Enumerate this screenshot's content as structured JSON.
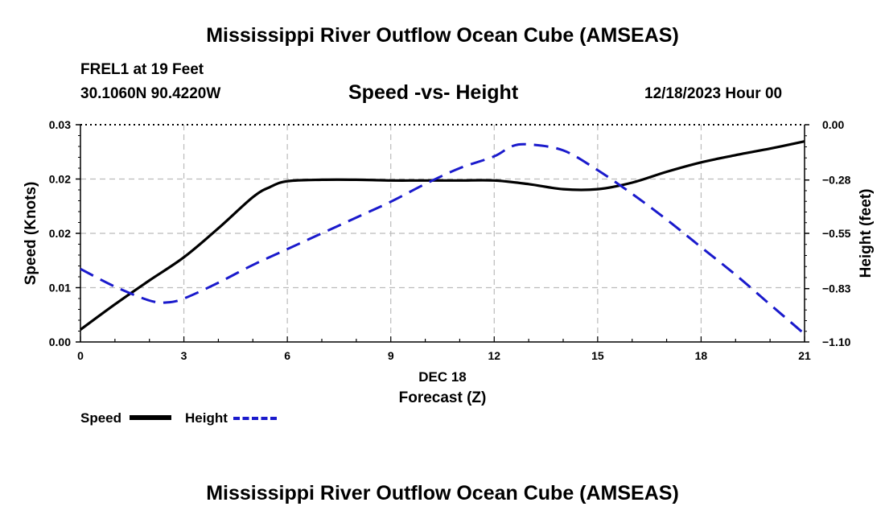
{
  "header": {
    "title": "Mississippi River Outflow Ocean Cube (AMSEAS)",
    "station": "FREL1 at 19 Feet",
    "coords": "30.1060N  90.4220W",
    "date": "12/18/2023 Hour 00"
  },
  "footer": {
    "title": "Mississippi River Outflow Ocean Cube (AMSEAS)"
  },
  "legend": {
    "speed_label": "Speed",
    "height_label": "Height"
  },
  "colors": {
    "speed": "#000000",
    "height": "#1a1acc",
    "grid": "#bbbbbb"
  },
  "chart_data": {
    "type": "line",
    "title": "Speed -vs- Height",
    "xlabel": "Forecast (Z)",
    "xdate_label": "DEC 18",
    "ylabel": "Speed (Knots)",
    "y2label": "Height (feet)",
    "xlim": [
      0,
      21
    ],
    "x_ticks": [
      0,
      3,
      6,
      9,
      12,
      15,
      18,
      21
    ],
    "x_tick_labels": [
      "0",
      "3",
      "6",
      "9",
      "12",
      "15",
      "18",
      "21"
    ],
    "ylim": [
      0,
      0.03
    ],
    "y_ticks": [
      0,
      0.0075,
      0.015,
      0.0225,
      0.03
    ],
    "y_tick_labels": [
      "0.00",
      "0.01",
      "0.02",
      "0.02",
      "0.03"
    ],
    "y2lim": [
      -1.1,
      0.0
    ],
    "y2_ticks": [
      -1.1,
      -0.83,
      -0.55,
      -0.28,
      0.0
    ],
    "y2_tick_labels": [
      "−1.10",
      "−0.83",
      "−0.55",
      "−0.28",
      "0.00"
    ],
    "grid": true,
    "series": [
      {
        "name": "Speed",
        "axis": "left",
        "style": "solid",
        "x": [
          0,
          1,
          2,
          3,
          4,
          5,
          5.5,
          6,
          7,
          8,
          9,
          10,
          11,
          12,
          13,
          14,
          15,
          16,
          17,
          18,
          19,
          20,
          21
        ],
        "y": [
          0.0017,
          0.0052,
          0.0085,
          0.0117,
          0.0157,
          0.02,
          0.0214,
          0.0222,
          0.0224,
          0.0224,
          0.0223,
          0.0223,
          0.0223,
          0.0223,
          0.0218,
          0.0211,
          0.0211,
          0.022,
          0.0235,
          0.0248,
          0.0258,
          0.0267,
          0.0277
        ]
      },
      {
        "name": "Height",
        "axis": "right",
        "style": "dashed",
        "x": [
          0,
          1,
          2,
          2.5,
          3,
          4,
          5,
          6,
          7,
          8,
          9,
          10,
          11,
          12,
          12.5,
          13,
          14,
          15,
          16,
          17,
          18,
          19,
          20,
          21
        ],
        "y": [
          -0.73,
          -0.82,
          -0.89,
          -0.9,
          -0.88,
          -0.8,
          -0.71,
          -0.63,
          -0.55,
          -0.47,
          -0.39,
          -0.3,
          -0.22,
          -0.16,
          -0.11,
          -0.1,
          -0.13,
          -0.23,
          -0.35,
          -0.48,
          -0.62,
          -0.76,
          -0.91,
          -1.06
        ]
      }
    ]
  }
}
